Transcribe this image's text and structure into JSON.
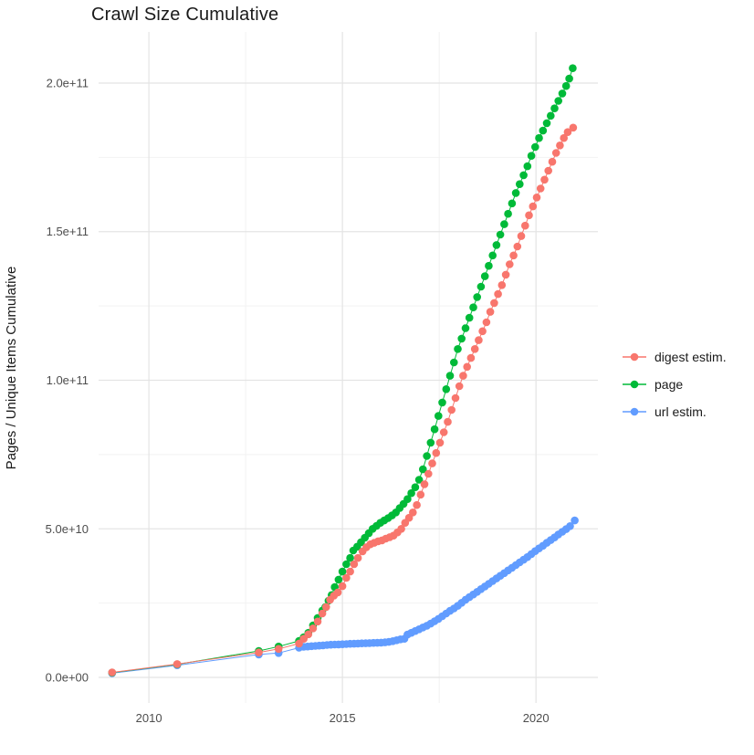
{
  "title": "Crawl Size Cumulative",
  "y_axis": {
    "label": "Pages / Unique Items Cumulative"
  },
  "x_axis": {
    "label": ""
  },
  "legend": {
    "position": "right",
    "items": [
      {
        "label": "digest estim.",
        "color": "#F8766D"
      },
      {
        "label": "page",
        "color": "#00BA38"
      },
      {
        "label": "url estim.",
        "color": "#619CFF"
      }
    ]
  },
  "colors": {
    "background": "#FFFFFF",
    "grid_major": "#E4E4E4",
    "grid_minor": "#F2F2F2",
    "tick_text": "#4D4D4D",
    "title_text": "#1A1A1A"
  },
  "chart_data": {
    "type": "scatter",
    "title": "Crawl Size Cumulative",
    "xlabel": "",
    "ylabel": "Pages / Unique Items Cumulative",
    "value_unit": "billions (1e9 pages / unique items)",
    "grid": "on",
    "legend_position": "right",
    "xlim": [
      2008.7,
      2021.6
    ],
    "ylim_billions": [
      -8.6,
      217.2
    ],
    "x_ticks": [
      {
        "value": 2010,
        "label": "2010"
      },
      {
        "value": 2015,
        "label": "2015"
      },
      {
        "value": 2020,
        "label": "2020"
      }
    ],
    "x_minor_ticks": [
      2012.5,
      2017.5
    ],
    "y_ticks": [
      {
        "value": 0,
        "label": "0.0e+00"
      },
      {
        "value": 50,
        "label": "5.0e+10"
      },
      {
        "value": 100,
        "label": "1.0e+11"
      },
      {
        "value": 150,
        "label": "1.5e+11"
      },
      {
        "value": 200,
        "label": "2.0e+11"
      }
    ],
    "y_minor_ticks": [
      25,
      75,
      125,
      175
    ],
    "series": [
      {
        "name": "digest estim.",
        "color": "#F8766D",
        "points": [
          [
            2009.05,
            1.7
          ],
          [
            2010.73,
            4.5
          ],
          [
            2012.84,
            8.4
          ],
          [
            2013.35,
            9.6
          ],
          [
            2013.88,
            11.4
          ],
          [
            2014.0,
            13.0
          ],
          [
            2014.12,
            14.5
          ],
          [
            2014.24,
            16.5
          ],
          [
            2014.36,
            18.8
          ],
          [
            2014.48,
            21.5
          ],
          [
            2014.58,
            23.7
          ],
          [
            2014.68,
            26.1
          ],
          [
            2014.78,
            27.5
          ],
          [
            2014.88,
            28.6
          ],
          [
            2015.0,
            30.7
          ],
          [
            2015.1,
            33.5
          ],
          [
            2015.2,
            35.6
          ],
          [
            2015.3,
            38.1
          ],
          [
            2015.4,
            40.2
          ],
          [
            2015.52,
            42.4
          ],
          [
            2015.62,
            43.8
          ],
          [
            2015.72,
            44.8
          ],
          [
            2015.82,
            45.3
          ],
          [
            2015.92,
            45.8
          ],
          [
            2016.02,
            46.1
          ],
          [
            2016.12,
            46.7
          ],
          [
            2016.22,
            47.2
          ],
          [
            2016.32,
            47.7
          ],
          [
            2016.42,
            48.8
          ],
          [
            2016.52,
            50.0
          ],
          [
            2016.62,
            52.0
          ],
          [
            2016.72,
            53.7
          ],
          [
            2016.82,
            55.5
          ],
          [
            2016.92,
            58.0
          ],
          [
            2017.02,
            61.5
          ],
          [
            2017.12,
            65.0
          ],
          [
            2017.22,
            68.5
          ],
          [
            2017.32,
            72.0
          ],
          [
            2017.42,
            75.5
          ],
          [
            2017.52,
            79.0
          ],
          [
            2017.62,
            82.5
          ],
          [
            2017.72,
            86.0
          ],
          [
            2017.82,
            90.0
          ],
          [
            2017.92,
            94.0
          ],
          [
            2018.02,
            98.0
          ],
          [
            2018.12,
            101.5
          ],
          [
            2018.22,
            104.5
          ],
          [
            2018.32,
            107.5
          ],
          [
            2018.42,
            110.5
          ],
          [
            2018.52,
            113.5
          ],
          [
            2018.62,
            116.5
          ],
          [
            2018.72,
            119.5
          ],
          [
            2018.82,
            123.0
          ],
          [
            2018.92,
            126.0
          ],
          [
            2019.02,
            129.0
          ],
          [
            2019.12,
            132.0
          ],
          [
            2019.22,
            135.5
          ],
          [
            2019.32,
            139.0
          ],
          [
            2019.42,
            142.0
          ],
          [
            2019.52,
            145.0
          ],
          [
            2019.62,
            148.5
          ],
          [
            2019.72,
            152.0
          ],
          [
            2019.82,
            155.5
          ],
          [
            2019.92,
            158.5
          ],
          [
            2020.02,
            161.5
          ],
          [
            2020.12,
            164.5
          ],
          [
            2020.22,
            167.5
          ],
          [
            2020.32,
            170.5
          ],
          [
            2020.42,
            173.5
          ],
          [
            2020.52,
            176.5
          ],
          [
            2020.62,
            179.0
          ],
          [
            2020.72,
            181.5
          ],
          [
            2020.82,
            183.5
          ],
          [
            2020.96,
            185.0
          ]
        ]
      },
      {
        "name": "page",
        "color": "#00BA38",
        "points": [
          [
            2009.05,
            1.6
          ],
          [
            2010.73,
            4.4
          ],
          [
            2012.84,
            8.9
          ],
          [
            2013.35,
            10.4
          ],
          [
            2013.88,
            12.3
          ],
          [
            2014.0,
            13.5
          ],
          [
            2014.12,
            15.0
          ],
          [
            2014.24,
            17.5
          ],
          [
            2014.36,
            20.0
          ],
          [
            2014.48,
            22.5
          ],
          [
            2014.56,
            23.7
          ],
          [
            2014.64,
            25.8
          ],
          [
            2014.72,
            27.7
          ],
          [
            2014.8,
            30.4
          ],
          [
            2014.9,
            32.9
          ],
          [
            2015.0,
            35.6
          ],
          [
            2015.1,
            38.1
          ],
          [
            2015.2,
            40.2
          ],
          [
            2015.28,
            42.7
          ],
          [
            2015.38,
            44.0
          ],
          [
            2015.48,
            45.5
          ],
          [
            2015.58,
            47.0
          ],
          [
            2015.68,
            48.5
          ],
          [
            2015.78,
            50.0
          ],
          [
            2015.88,
            51.0
          ],
          [
            2015.98,
            52.0
          ],
          [
            2016.08,
            52.8
          ],
          [
            2016.18,
            53.6
          ],
          [
            2016.28,
            54.5
          ],
          [
            2016.38,
            55.5
          ],
          [
            2016.48,
            57.0
          ],
          [
            2016.58,
            58.4
          ],
          [
            2016.68,
            60.0
          ],
          [
            2016.78,
            62.0
          ],
          [
            2016.88,
            64.0
          ],
          [
            2016.98,
            66.5
          ],
          [
            2017.08,
            70.0
          ],
          [
            2017.18,
            74.5
          ],
          [
            2017.28,
            79.0
          ],
          [
            2017.38,
            83.5
          ],
          [
            2017.48,
            88.0
          ],
          [
            2017.58,
            92.5
          ],
          [
            2017.68,
            97.0
          ],
          [
            2017.78,
            101.5
          ],
          [
            2017.88,
            106.0
          ],
          [
            2017.98,
            110.5
          ],
          [
            2018.08,
            114.0
          ],
          [
            2018.18,
            117.5
          ],
          [
            2018.28,
            121.0
          ],
          [
            2018.38,
            124.5
          ],
          [
            2018.48,
            128.0
          ],
          [
            2018.58,
            131.5
          ],
          [
            2018.68,
            135.0
          ],
          [
            2018.78,
            138.5
          ],
          [
            2018.88,
            142.0
          ],
          [
            2018.98,
            145.5
          ],
          [
            2019.08,
            149.0
          ],
          [
            2019.18,
            152.5
          ],
          [
            2019.28,
            156.0
          ],
          [
            2019.38,
            159.5
          ],
          [
            2019.48,
            163.0
          ],
          [
            2019.58,
            166.0
          ],
          [
            2019.68,
            169.0
          ],
          [
            2019.78,
            172.0
          ],
          [
            2019.88,
            175.5
          ],
          [
            2019.98,
            178.5
          ],
          [
            2020.08,
            181.5
          ],
          [
            2020.18,
            184.0
          ],
          [
            2020.28,
            186.5
          ],
          [
            2020.38,
            189.0
          ],
          [
            2020.48,
            191.5
          ],
          [
            2020.58,
            194.0
          ],
          [
            2020.68,
            196.5
          ],
          [
            2020.78,
            199.0
          ],
          [
            2020.86,
            201.5
          ],
          [
            2020.95,
            205.0
          ]
        ]
      },
      {
        "name": "url estim.",
        "color": "#619CFF",
        "points": [
          [
            2009.05,
            1.4
          ],
          [
            2010.73,
            4.1
          ],
          [
            2012.84,
            7.7
          ],
          [
            2013.35,
            8.2
          ],
          [
            2013.88,
            10.0
          ],
          [
            2014.0,
            10.3
          ],
          [
            2014.1,
            10.4
          ],
          [
            2014.2,
            10.5
          ],
          [
            2014.3,
            10.6
          ],
          [
            2014.4,
            10.7
          ],
          [
            2014.5,
            10.8
          ],
          [
            2014.6,
            10.9
          ],
          [
            2014.7,
            11.0
          ],
          [
            2014.8,
            11.05
          ],
          [
            2014.9,
            11.1
          ],
          [
            2015.0,
            11.15
          ],
          [
            2015.1,
            11.2
          ],
          [
            2015.2,
            11.3
          ],
          [
            2015.3,
            11.35
          ],
          [
            2015.4,
            11.4
          ],
          [
            2015.5,
            11.45
          ],
          [
            2015.6,
            11.5
          ],
          [
            2015.7,
            11.55
          ],
          [
            2015.8,
            11.6
          ],
          [
            2015.9,
            11.65
          ],
          [
            2016.0,
            11.7
          ],
          [
            2016.1,
            11.8
          ],
          [
            2016.2,
            11.95
          ],
          [
            2016.3,
            12.2
          ],
          [
            2016.4,
            12.5
          ],
          [
            2016.5,
            12.8
          ],
          [
            2016.6,
            13.0
          ],
          [
            2016.68,
            14.4
          ],
          [
            2016.78,
            15.0
          ],
          [
            2016.88,
            15.6
          ],
          [
            2016.98,
            16.2
          ],
          [
            2017.08,
            16.8
          ],
          [
            2017.18,
            17.4
          ],
          [
            2017.28,
            18.1
          ],
          [
            2017.38,
            18.9
          ],
          [
            2017.48,
            19.7
          ],
          [
            2017.58,
            20.6
          ],
          [
            2017.68,
            21.5
          ],
          [
            2017.78,
            22.4
          ],
          [
            2017.88,
            23.2
          ],
          [
            2017.98,
            24.1
          ],
          [
            2018.08,
            25.1
          ],
          [
            2018.18,
            26.1
          ],
          [
            2018.28,
            27.0
          ],
          [
            2018.38,
            27.9
          ],
          [
            2018.48,
            28.8
          ],
          [
            2018.58,
            29.7
          ],
          [
            2018.68,
            30.6
          ],
          [
            2018.78,
            31.5
          ],
          [
            2018.88,
            32.4
          ],
          [
            2018.98,
            33.3
          ],
          [
            2019.08,
            34.2
          ],
          [
            2019.18,
            35.1
          ],
          [
            2019.28,
            36.0
          ],
          [
            2019.38,
            36.9
          ],
          [
            2019.48,
            37.8
          ],
          [
            2019.58,
            38.7
          ],
          [
            2019.68,
            39.6
          ],
          [
            2019.78,
            40.5
          ],
          [
            2019.88,
            41.5
          ],
          [
            2019.98,
            42.5
          ],
          [
            2020.08,
            43.4
          ],
          [
            2020.18,
            44.3
          ],
          [
            2020.28,
            45.3
          ],
          [
            2020.38,
            46.2
          ],
          [
            2020.48,
            47.1
          ],
          [
            2020.58,
            48.1
          ],
          [
            2020.68,
            49.0
          ],
          [
            2020.78,
            49.9
          ],
          [
            2020.88,
            50.9
          ],
          [
            2021.0,
            52.8
          ]
        ]
      }
    ]
  }
}
